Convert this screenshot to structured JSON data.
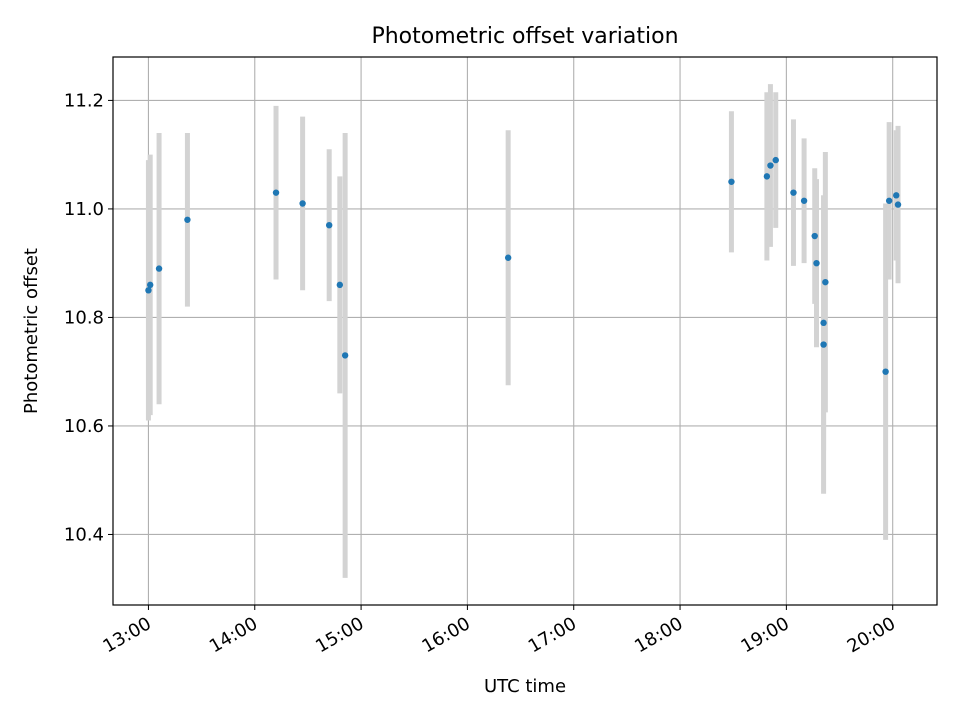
{
  "chart_data": {
    "type": "scatter",
    "title": "Photometric offset variation",
    "xlabel": "UTC time",
    "ylabel": "Photometric offset",
    "x_axis_type": "time",
    "xlim": [
      "12:40",
      "20:25"
    ],
    "ylim": [
      10.27,
      11.28
    ],
    "x_ticks": [
      "13:00",
      "14:00",
      "15:00",
      "16:00",
      "17:00",
      "18:00",
      "19:00",
      "20:00"
    ],
    "y_ticks": [
      10.4,
      10.6,
      10.8,
      11.0,
      11.2
    ],
    "y_tick_labels": [
      "10.4",
      "10.6",
      "10.8",
      "11.0",
      "11.2"
    ],
    "grid": true,
    "marker_color": "#1f77b4",
    "errorbar_color": "#d3d3d3",
    "points": [
      {
        "x": "13:00",
        "y": 10.85,
        "err": 0.24
      },
      {
        "x": "13:01",
        "y": 10.86,
        "err": 0.24
      },
      {
        "x": "13:06",
        "y": 10.89,
        "err": 0.25
      },
      {
        "x": "13:22",
        "y": 10.98,
        "err": 0.16
      },
      {
        "x": "14:12",
        "y": 11.03,
        "err": 0.16
      },
      {
        "x": "14:27",
        "y": 11.01,
        "err": 0.16
      },
      {
        "x": "14:42",
        "y": 10.97,
        "err": 0.14
      },
      {
        "x": "14:48",
        "y": 10.86,
        "err": 0.2
      },
      {
        "x": "14:51",
        "y": 10.73,
        "err": 0.41
      },
      {
        "x": "16:23",
        "y": 10.91,
        "err": 0.235
      },
      {
        "x": "18:29",
        "y": 11.05,
        "err": 0.13
      },
      {
        "x": "18:49",
        "y": 11.06,
        "err": 0.155
      },
      {
        "x": "18:51",
        "y": 11.08,
        "err": 0.15
      },
      {
        "x": "18:54",
        "y": 11.09,
        "err": 0.125
      },
      {
        "x": "19:04",
        "y": 11.03,
        "err": 0.135
      },
      {
        "x": "19:10",
        "y": 11.015,
        "err": 0.115
      },
      {
        "x": "19:16",
        "y": 10.95,
        "err": 0.125
      },
      {
        "x": "19:17",
        "y": 10.9,
        "err": 0.155
      },
      {
        "x": "19:21",
        "y": 10.75,
        "err": 0.275
      },
      {
        "x": "19:21",
        "y": 10.79,
        "err": 0.235
      },
      {
        "x": "19:22",
        "y": 10.865,
        "err": 0.24
      },
      {
        "x": "19:56",
        "y": 10.7,
        "err": 0.31
      },
      {
        "x": "19:58",
        "y": 11.015,
        "err": 0.145
      },
      {
        "x": "20:02",
        "y": 11.025,
        "err": 0.12
      },
      {
        "x": "20:03",
        "y": 11.008,
        "err": 0.145
      }
    ]
  }
}
